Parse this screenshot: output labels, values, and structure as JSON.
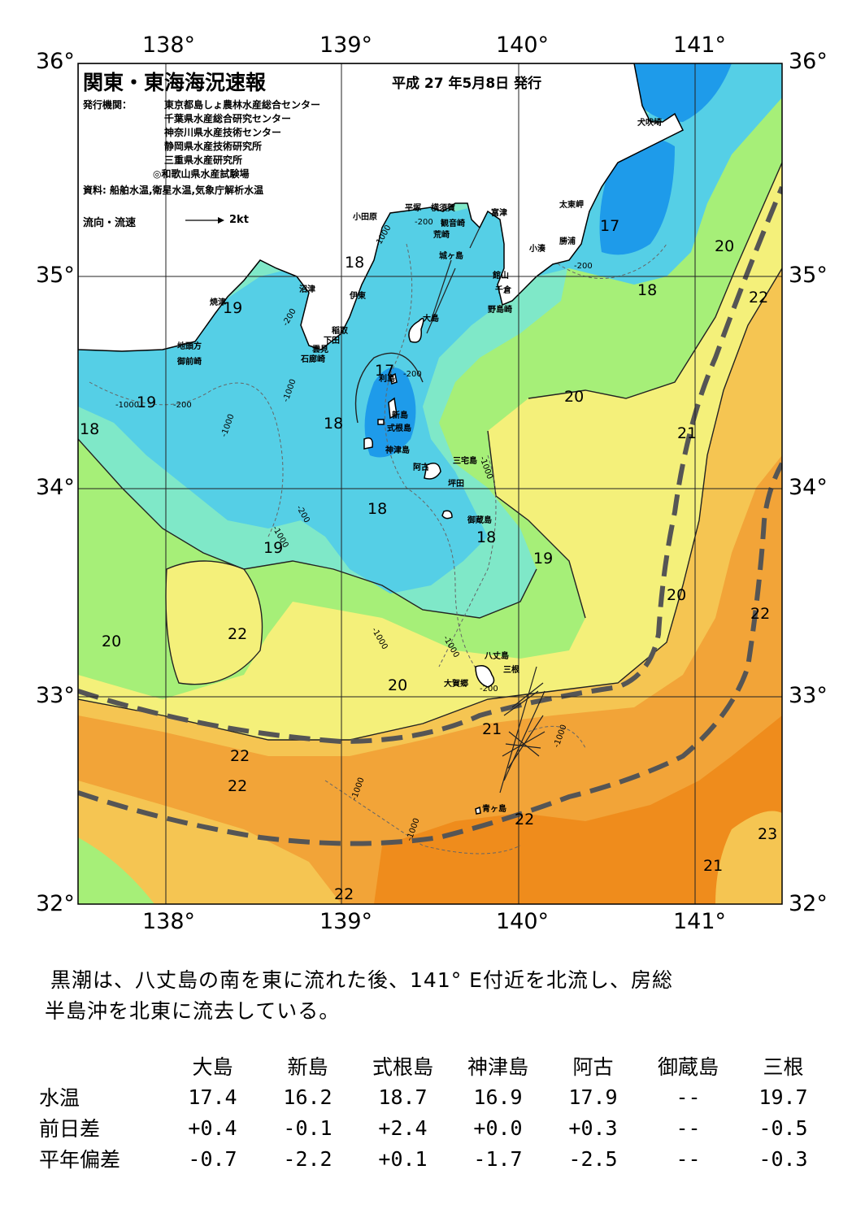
{
  "header": {
    "title": "関東・東海海況速報",
    "date": "平成 27 年5月8日 発行",
    "issuer_label": "発行機関：",
    "issuers": [
      "東京都島しょ農林水産総合センター",
      "千葉県水産総合研究センター",
      "神奈川県水産技術センター",
      "静岡県水産技術研究所",
      "三重県水産研究所",
      "◎和歌山県水産試験場"
    ],
    "source": "資料: 船舶水温,衛星水温,気象庁解析水温",
    "current_legend": "流向・流速",
    "current_scale": "2kt"
  },
  "axes": {
    "lon_top": [
      "138°",
      "139°",
      "140°",
      "141°"
    ],
    "lon_bottom": [
      "138°",
      "139°",
      "140°",
      "141°"
    ],
    "lat_left": [
      "36°",
      "35°",
      "34°",
      "33°",
      "32°"
    ],
    "lat_right": [
      "36°",
      "35°",
      "34°",
      "33°",
      "32°"
    ]
  },
  "places": [
    "犬吠埼",
    "太東岬",
    "勝浦",
    "小湊",
    "館山",
    "千倉",
    "野島崎",
    "富津",
    "横須賀",
    "観音崎",
    "荒崎",
    "平塚",
    "城ヶ島",
    "小田原",
    "沼津",
    "伊東",
    "焼津",
    "稲取",
    "下田",
    "雲見",
    "石廊崎",
    "地頭方",
    "御前崎",
    "大島",
    "利島",
    "新島",
    "式根島",
    "神津島",
    "三宅島",
    "阿古",
    "坪田",
    "御蔵島",
    "八丈島",
    "三根",
    "大賀郷",
    "青ヶ島"
  ],
  "isotherms": [
    "17",
    "20",
    "18",
    "18",
    "22",
    "19",
    "19",
    "20",
    "17",
    "18",
    "21",
    "18",
    "18",
    "18",
    "19",
    "19",
    "20",
    "22",
    "22",
    "20",
    "20",
    "21",
    "22",
    "22",
    "22",
    "23",
    "21",
    "22",
    "22"
  ],
  "depths": [
    "-200",
    "-1000",
    "-200",
    "-200",
    "-1000",
    "-200",
    "-200",
    "-1000",
    "-200",
    "-1000",
    "-1000",
    "-1000",
    "-200",
    "-1000",
    "-1000",
    "-1000",
    "-1000",
    "-1000"
  ],
  "colors": {
    "c17": "#1e9bea",
    "c18": "#55cfe6",
    "c19": "#7fe8c8",
    "c20": "#a6ef78",
    "c21": "#f4f07a",
    "c22": "#f5c552",
    "c23": "#f2a438",
    "c24": "#ef8c1c",
    "land": "#ffffff",
    "kuroshio_axis": "#555555"
  },
  "summary": {
    "line1": "黒潮は、八丈島の南を東に流れた後、141° E付近を北流し、房総",
    "line2": "半島沖を北東に流去している。"
  },
  "table": {
    "columns": [
      "大島",
      "新島",
      "式根島",
      "神津島",
      "阿古",
      "御蔵島",
      "三根"
    ],
    "rows": [
      {
        "label": "水温",
        "values": [
          "17.4",
          "16.2",
          "18.7",
          "16.9",
          "17.9",
          "--",
          "19.7"
        ]
      },
      {
        "label": "前日差",
        "values": [
          "+0.4",
          "-0.1",
          "+2.4",
          "+0.0",
          "+0.3",
          "--",
          "-0.5"
        ]
      },
      {
        "label": "平年偏差",
        "values": [
          "-0.7",
          "-2.2",
          "+0.1",
          "-1.7",
          "-2.5",
          "--",
          "-0.3"
        ]
      }
    ]
  }
}
